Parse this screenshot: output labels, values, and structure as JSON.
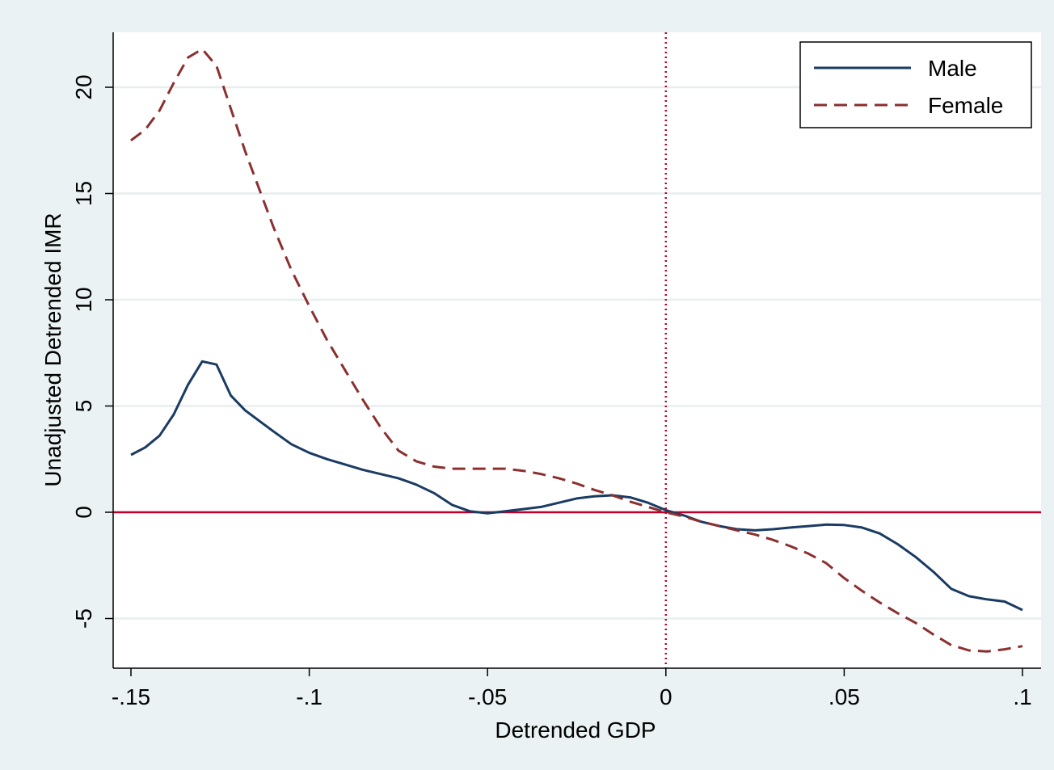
{
  "chart_data": {
    "type": "line",
    "xlabel": "Detrended GDP",
    "ylabel": "Unadjusted Detrended IMR",
    "xlim": [
      -0.15,
      0.1
    ],
    "ylim": [
      -7.2,
      22.5
    ],
    "x_ticks": [
      {
        "value": -0.15,
        "label": "-.15"
      },
      {
        "value": -0.1,
        "label": "-.1"
      },
      {
        "value": -0.05,
        "label": "-.05"
      },
      {
        "value": 0,
        "label": "0"
      },
      {
        "value": 0.05,
        "label": ".05"
      },
      {
        "value": 0.1,
        "label": ".1"
      }
    ],
    "y_ticks": [
      {
        "value": -5,
        "label": "-5"
      },
      {
        "value": 0,
        "label": "0"
      },
      {
        "value": 5,
        "label": "5"
      },
      {
        "value": 10,
        "label": "10"
      },
      {
        "value": 15,
        "label": "15"
      },
      {
        "value": 20,
        "label": "20"
      }
    ],
    "grid": "horizontal",
    "legend_position": "top-right",
    "reference_lines": {
      "horizontal_y": 0,
      "vertical_x": 0,
      "color": "#c0002b"
    },
    "series": [
      {
        "name": "Male",
        "color": "#1a3b63",
        "style": "solid",
        "points": [
          [
            -0.15,
            2.7
          ],
          [
            -0.146,
            3.05
          ],
          [
            -0.142,
            3.6
          ],
          [
            -0.138,
            4.6
          ],
          [
            -0.134,
            6.0
          ],
          [
            -0.13,
            7.1
          ],
          [
            -0.126,
            6.95
          ],
          [
            -0.122,
            5.5
          ],
          [
            -0.118,
            4.8
          ],
          [
            -0.114,
            4.3
          ],
          [
            -0.11,
            3.8
          ],
          [
            -0.105,
            3.2
          ],
          [
            -0.1,
            2.8
          ],
          [
            -0.095,
            2.5
          ],
          [
            -0.09,
            2.25
          ],
          [
            -0.085,
            2.0
          ],
          [
            -0.08,
            1.8
          ],
          [
            -0.075,
            1.6
          ],
          [
            -0.07,
            1.3
          ],
          [
            -0.065,
            0.9
          ],
          [
            -0.06,
            0.35
          ],
          [
            -0.055,
            0.05
          ],
          [
            -0.05,
            -0.05
          ],
          [
            -0.045,
            0.05
          ],
          [
            -0.04,
            0.15
          ],
          [
            -0.035,
            0.25
          ],
          [
            -0.03,
            0.45
          ],
          [
            -0.025,
            0.65
          ],
          [
            -0.02,
            0.75
          ],
          [
            -0.015,
            0.8
          ],
          [
            -0.01,
            0.7
          ],
          [
            -0.005,
            0.45
          ],
          [
            0,
            0.1
          ],
          [
            0.005,
            -0.15
          ],
          [
            0.01,
            -0.45
          ],
          [
            0.015,
            -0.65
          ],
          [
            0.02,
            -0.8
          ],
          [
            0.025,
            -0.85
          ],
          [
            0.03,
            -0.8
          ],
          [
            0.035,
            -0.72
          ],
          [
            0.04,
            -0.65
          ],
          [
            0.045,
            -0.58
          ],
          [
            0.05,
            -0.6
          ],
          [
            0.055,
            -0.72
          ],
          [
            0.06,
            -1.0
          ],
          [
            0.065,
            -1.5
          ],
          [
            0.07,
            -2.1
          ],
          [
            0.075,
            -2.8
          ],
          [
            0.08,
            -3.6
          ],
          [
            0.085,
            -3.95
          ],
          [
            0.09,
            -4.1
          ],
          [
            0.095,
            -4.2
          ],
          [
            0.1,
            -4.6
          ]
        ]
      },
      {
        "name": "Female",
        "color": "#8b2f2f",
        "style": "dashed",
        "points": [
          [
            -0.15,
            17.5
          ],
          [
            -0.146,
            18.0
          ],
          [
            -0.142,
            18.9
          ],
          [
            -0.138,
            20.2
          ],
          [
            -0.134,
            21.4
          ],
          [
            -0.13,
            21.8
          ],
          [
            -0.126,
            21.0
          ],
          [
            -0.122,
            19.0
          ],
          [
            -0.118,
            17.0
          ],
          [
            -0.114,
            15.2
          ],
          [
            -0.11,
            13.4
          ],
          [
            -0.105,
            11.4
          ],
          [
            -0.1,
            9.7
          ],
          [
            -0.095,
            8.1
          ],
          [
            -0.09,
            6.7
          ],
          [
            -0.085,
            5.3
          ],
          [
            -0.08,
            4.0
          ],
          [
            -0.075,
            2.9
          ],
          [
            -0.07,
            2.4
          ],
          [
            -0.065,
            2.15
          ],
          [
            -0.06,
            2.05
          ],
          [
            -0.055,
            2.05
          ],
          [
            -0.05,
            2.05
          ],
          [
            -0.045,
            2.05
          ],
          [
            -0.04,
            1.95
          ],
          [
            -0.035,
            1.8
          ],
          [
            -0.03,
            1.6
          ],
          [
            -0.025,
            1.35
          ],
          [
            -0.02,
            1.05
          ],
          [
            -0.015,
            0.8
          ],
          [
            -0.01,
            0.5
          ],
          [
            -0.005,
            0.25
          ],
          [
            0,
            0.0
          ],
          [
            0.005,
            -0.2
          ],
          [
            0.01,
            -0.45
          ],
          [
            0.015,
            -0.65
          ],
          [
            0.02,
            -0.85
          ],
          [
            0.025,
            -1.05
          ],
          [
            0.03,
            -1.3
          ],
          [
            0.035,
            -1.6
          ],
          [
            0.04,
            -1.95
          ],
          [
            0.045,
            -2.4
          ],
          [
            0.05,
            -3.1
          ],
          [
            0.055,
            -3.7
          ],
          [
            0.06,
            -4.25
          ],
          [
            0.065,
            -4.75
          ],
          [
            0.07,
            -5.2
          ],
          [
            0.075,
            -5.75
          ],
          [
            0.08,
            -6.25
          ],
          [
            0.085,
            -6.5
          ],
          [
            0.09,
            -6.55
          ],
          [
            0.095,
            -6.45
          ],
          [
            0.1,
            -6.3
          ]
        ]
      }
    ]
  }
}
